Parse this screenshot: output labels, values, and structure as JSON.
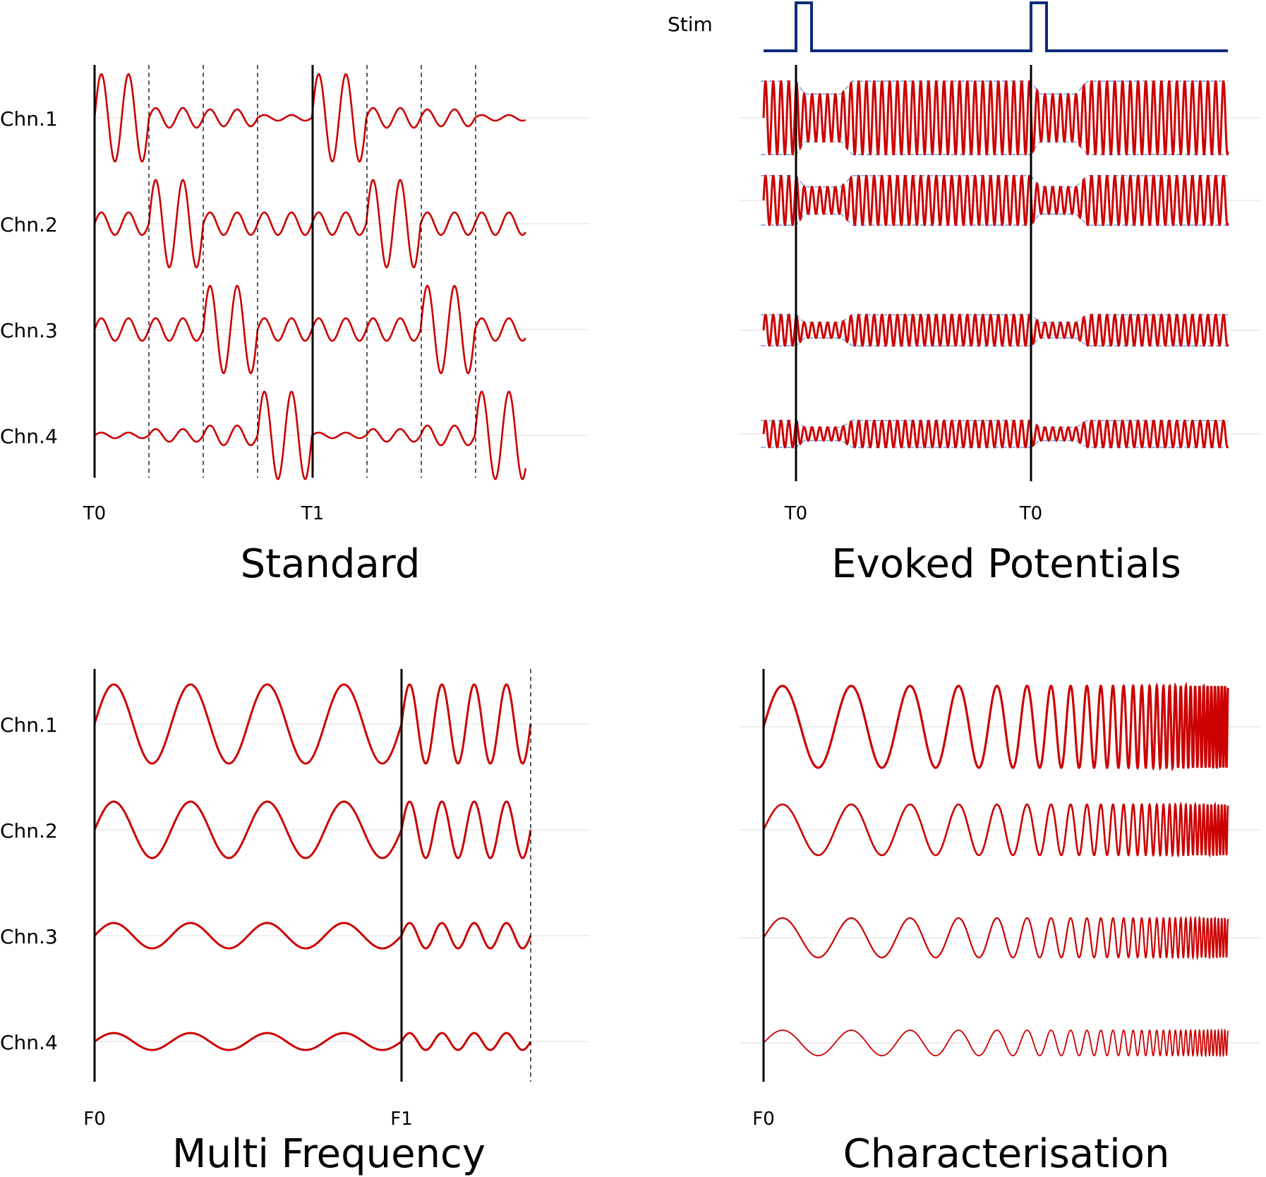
{
  "colors": {
    "signal": "#cc0000",
    "stim": "#0d2b7a",
    "envelope": "#6d9eeb",
    "grid": "#dddddd",
    "marker": "#000000"
  },
  "channels": [
    "Chn.1",
    "Chn.2",
    "Chn.3",
    "Chn.4"
  ],
  "panels": {
    "standard": {
      "title": "Standard",
      "markers": [
        "T0",
        "T1"
      ]
    },
    "evoked": {
      "title": "Evoked Potentials",
      "stim_label": "Stim",
      "markers": [
        "T0",
        "T0"
      ]
    },
    "multi": {
      "title": "Multi Frequency",
      "markers": [
        "F0",
        "F1"
      ]
    },
    "characterisation": {
      "title": "Characterisation",
      "markers": [
        "F0"
      ]
    }
  }
}
